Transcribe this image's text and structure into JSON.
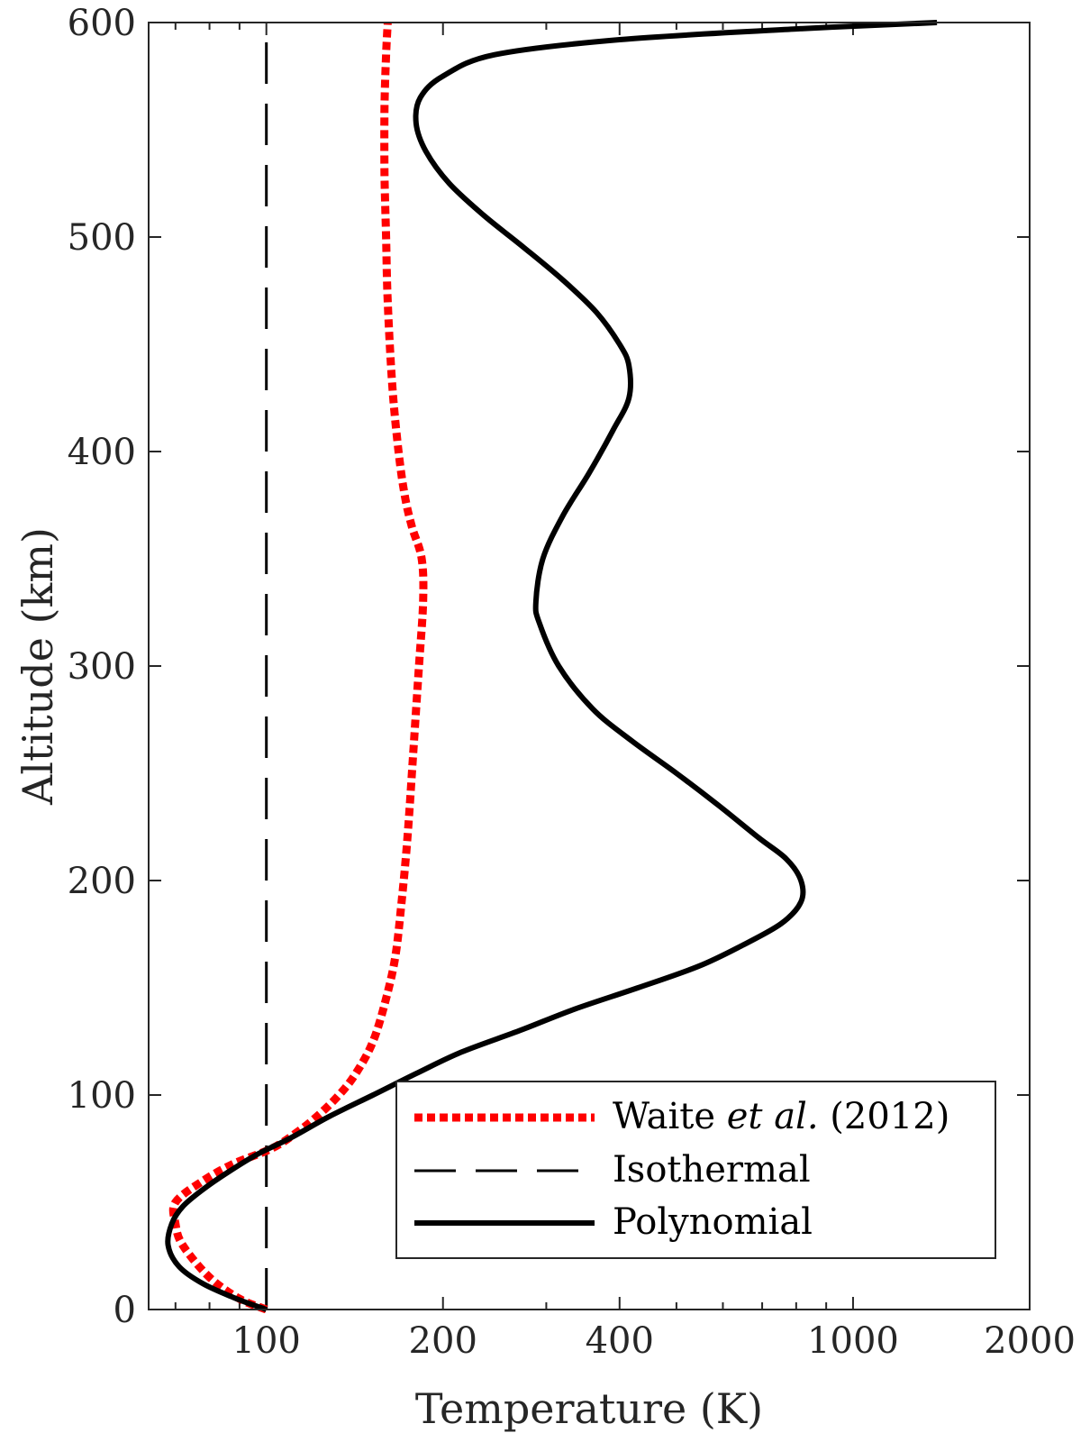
{
  "chart_data": {
    "type": "line",
    "xscale": "log",
    "xlim": [
      63,
      2000
    ],
    "ylim": [
      0,
      600
    ],
    "xlabel": "Temperature (K)",
    "ylabel": "Altitude (km)",
    "xticks": [
      100,
      200,
      400,
      1000,
      2000
    ],
    "xtick_labels": [
      "100",
      "200",
      "400",
      "1000",
      "2000"
    ],
    "yticks": [
      0,
      100,
      200,
      300,
      400,
      500,
      600
    ],
    "ytick_labels": [
      "0",
      "100",
      "200",
      "300",
      "400",
      "500",
      "600"
    ],
    "legend_position": "bottom-right",
    "series": [
      {
        "name": "Waite et al. (2012)",
        "legend_parts": [
          "Waite ",
          "et al.",
          " (2012)"
        ],
        "style": "dotted",
        "color": "#ff0000",
        "points": [
          [
            100,
            0
          ],
          [
            90,
            5
          ],
          [
            80,
            15
          ],
          [
            72,
            30
          ],
          [
            70,
            40
          ],
          [
            70,
            50
          ],
          [
            78,
            60
          ],
          [
            88,
            68
          ],
          [
            102,
            75
          ],
          [
            112,
            82
          ],
          [
            122,
            90
          ],
          [
            133,
            100
          ],
          [
            142,
            110
          ],
          [
            152,
            125
          ],
          [
            160,
            145
          ],
          [
            166,
            165
          ],
          [
            170,
            190
          ],
          [
            174,
            220
          ],
          [
            178,
            260
          ],
          [
            182,
            300
          ],
          [
            185,
            330
          ],
          [
            184,
            350
          ],
          [
            177,
            365
          ],
          [
            172,
            380
          ],
          [
            168,
            400
          ],
          [
            164,
            430
          ],
          [
            161,
            470
          ],
          [
            160,
            500
          ],
          [
            159,
            530
          ],
          [
            159,
            560
          ],
          [
            160,
            585
          ],
          [
            161,
            600
          ]
        ]
      },
      {
        "name": "Isothermal",
        "legend_parts": [
          "Isothermal"
        ],
        "style": "dashed",
        "color": "#000000",
        "points": [
          [
            100,
            0
          ],
          [
            100,
            600
          ]
        ]
      },
      {
        "name": "Polynomial",
        "legend_parts": [
          "Polynomial"
        ],
        "style": "solid",
        "color": "#000000",
        "points": [
          [
            100,
            0
          ],
          [
            89,
            5
          ],
          [
            78,
            12
          ],
          [
            71,
            20
          ],
          [
            68,
            30
          ],
          [
            69,
            40
          ],
          [
            72,
            48
          ],
          [
            78,
            56
          ],
          [
            86,
            64
          ],
          [
            96,
            72
          ],
          [
            110,
            80
          ],
          [
            128,
            90
          ],
          [
            152,
            100
          ],
          [
            180,
            110
          ],
          [
            215,
            120
          ],
          [
            270,
            130
          ],
          [
            335,
            140
          ],
          [
            430,
            150
          ],
          [
            545,
            160
          ],
          [
            650,
            170
          ],
          [
            755,
            180
          ],
          [
            815,
            190
          ],
          [
            815,
            200
          ],
          [
            770,
            210
          ],
          [
            690,
            220
          ],
          [
            590,
            235
          ],
          [
            500,
            250
          ],
          [
            420,
            265
          ],
          [
            360,
            280
          ],
          [
            315,
            300
          ],
          [
            292,
            320
          ],
          [
            288,
            330
          ],
          [
            296,
            350
          ],
          [
            320,
            370
          ],
          [
            355,
            390
          ],
          [
            390,
            410
          ],
          [
            415,
            425
          ],
          [
            415,
            440
          ],
          [
            400,
            450
          ],
          [
            365,
            465
          ],
          [
            320,
            480
          ],
          [
            275,
            495
          ],
          [
            235,
            510
          ],
          [
            205,
            525
          ],
          [
            187,
            540
          ],
          [
            180,
            553
          ],
          [
            183,
            565
          ],
          [
            200,
            575
          ],
          [
            245,
            585
          ],
          [
            400,
            592
          ],
          [
            800,
            597
          ],
          [
            1390,
            600
          ]
        ]
      }
    ]
  }
}
